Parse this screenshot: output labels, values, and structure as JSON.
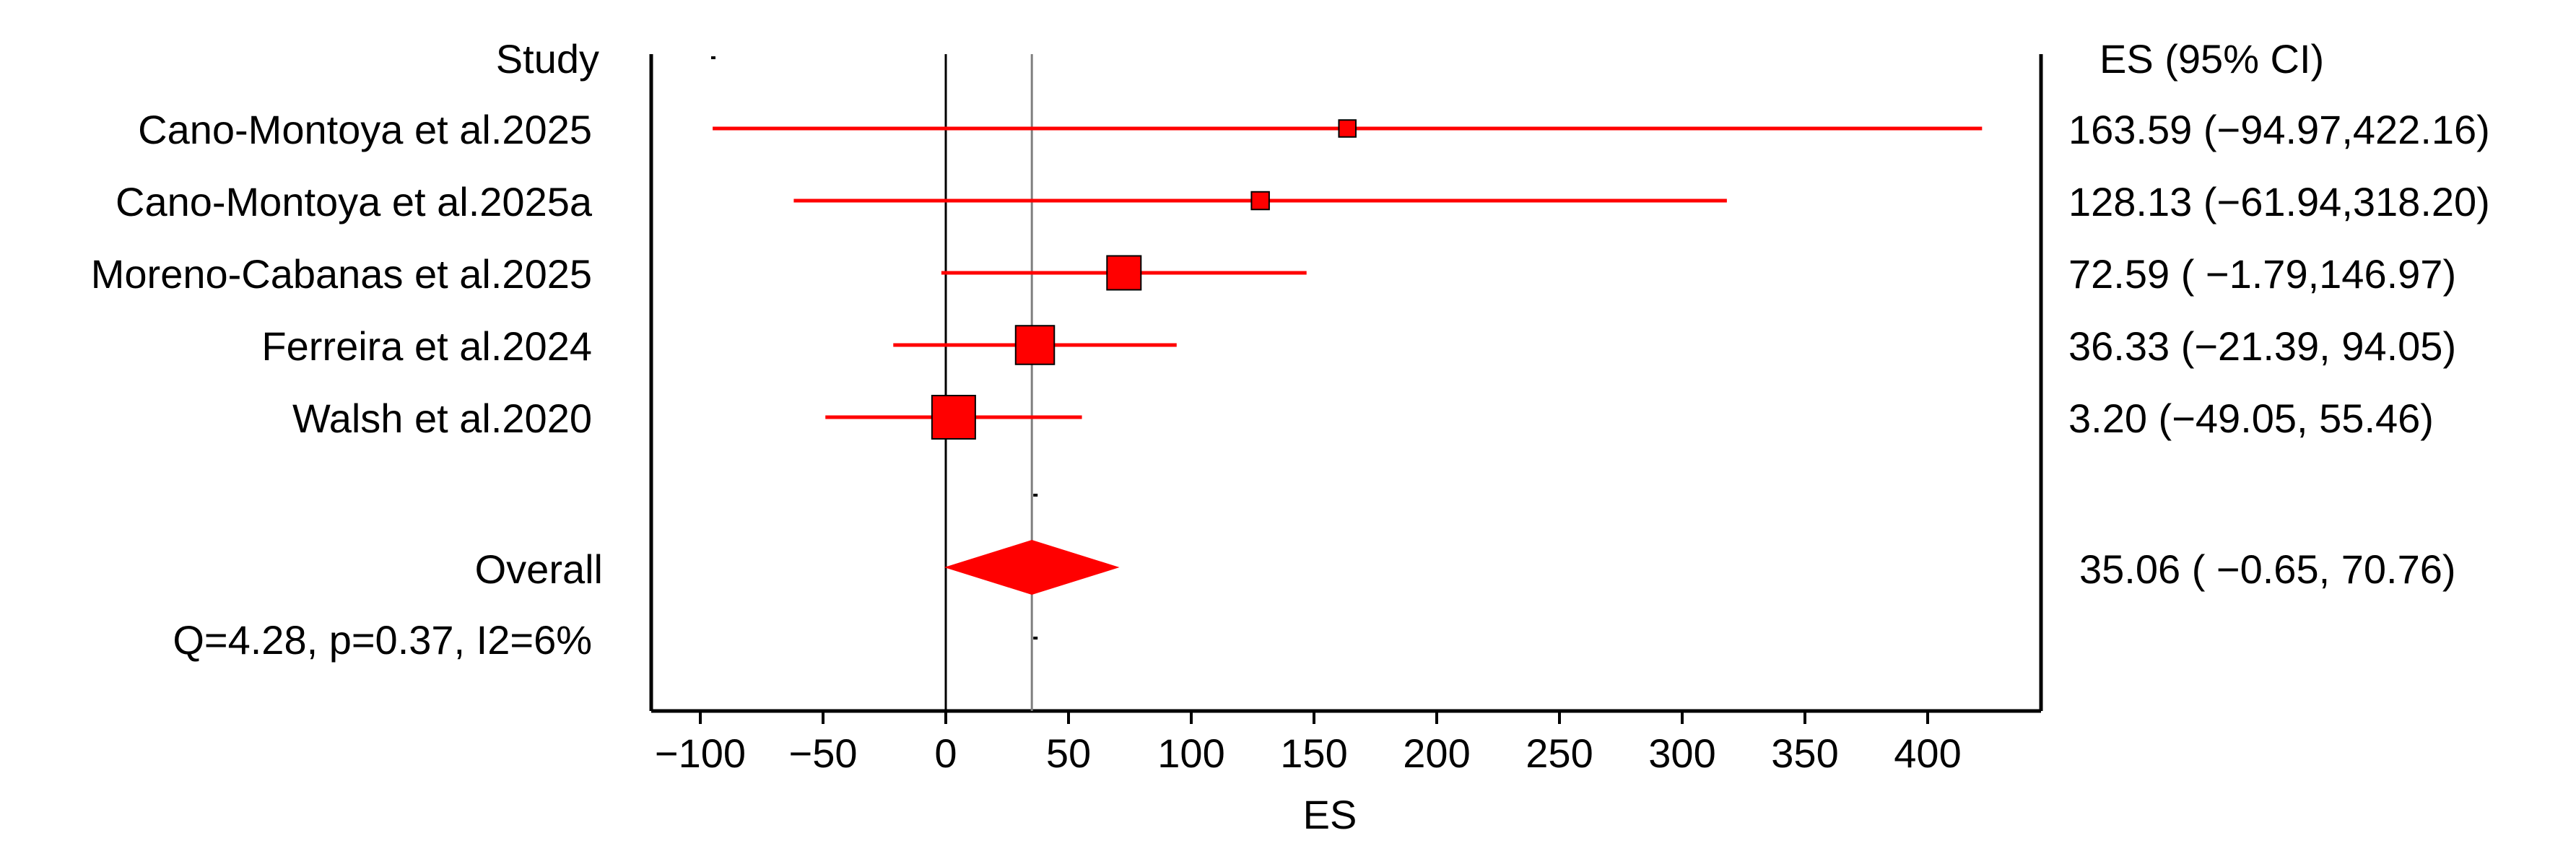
{
  "chart_data": {
    "type": "forest",
    "header": {
      "study": "Study",
      "estimate": "ES (95% CI)"
    },
    "xlabel": "ES",
    "xlim": [
      -120,
      450
    ],
    "xticks": [
      {
        "value": -100,
        "label": "−100"
      },
      {
        "value": -50,
        "label": "−50"
      },
      {
        "value": 0,
        "label": "0"
      },
      {
        "value": 50,
        "label": "50"
      },
      {
        "value": 100,
        "label": "100"
      },
      {
        "value": 150,
        "label": "150"
      },
      {
        "value": 200,
        "label": "200"
      },
      {
        "value": 250,
        "label": "250"
      },
      {
        "value": 300,
        "label": "300"
      },
      {
        "value": 350,
        "label": "350"
      },
      {
        "value": 400,
        "label": "400"
      }
    ],
    "null_line": 0,
    "studies": [
      {
        "name": "Cano-Montoya et al.2025",
        "es": 163.59,
        "lo": -94.97,
        "hi": 422.16,
        "weight": 0.15,
        "label": "163.59  (−94.97,422.16)"
      },
      {
        "name": "Cano-Montoya et al.2025a",
        "es": 128.13,
        "lo": -61.94,
        "hi": 318.2,
        "weight": 0.17,
        "label": "128.13  (−61.94,318.20)"
      },
      {
        "name": "Moreno-Cabanas et al.2025",
        "es": 72.59,
        "lo": -1.79,
        "hi": 146.97,
        "weight": 0.62,
        "label": "72.59  ( −1.79,146.97)"
      },
      {
        "name": "Ferreira et al.2024",
        "es": 36.33,
        "lo": -21.39,
        "hi": 94.05,
        "weight": 0.75,
        "label": "36.33  (−21.39, 94.05)"
      },
      {
        "name": "Walsh et al.2020",
        "es": 3.2,
        "lo": -49.05,
        "hi": 55.46,
        "weight": 0.88,
        "label": "3.20  (−49.05, 55.46)"
      }
    ],
    "overall": {
      "name": "Overall",
      "es": 35.06,
      "lo": -0.65,
      "hi": 70.76,
      "label": "35.06  ( −0.65, 70.76)"
    },
    "heterogeneity": "Q=4.28, p=0.37, I2=6%",
    "colors": {
      "marker": "#ff0000",
      "axis": "#000000",
      "pooled_line": "#808080"
    }
  }
}
